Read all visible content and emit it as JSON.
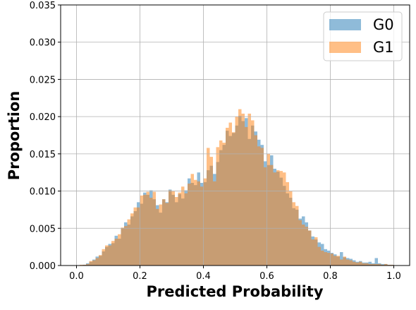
{
  "chart_data": {
    "type": "histogram",
    "xlabel": "Predicted Probability",
    "ylabel": "Proportion",
    "bins": [
      0,
      0.01,
      0.02,
      0.03,
      0.04,
      0.05,
      0.06,
      0.07,
      0.08,
      0.09,
      0.1,
      0.11,
      0.12,
      0.13,
      0.14,
      0.15,
      0.16,
      0.17,
      0.18,
      0.19,
      0.2,
      0.21,
      0.22,
      0.23,
      0.24,
      0.25,
      0.26,
      0.27,
      0.28,
      0.29,
      0.3,
      0.31,
      0.32,
      0.33,
      0.34,
      0.35,
      0.36,
      0.37,
      0.38,
      0.39,
      0.4,
      0.41,
      0.42,
      0.43,
      0.44,
      0.45,
      0.46,
      0.47,
      0.48,
      0.49,
      0.5,
      0.51,
      0.52,
      0.53,
      0.54,
      0.55,
      0.56,
      0.57,
      0.58,
      0.59,
      0.6,
      0.61,
      0.62,
      0.63,
      0.64,
      0.65,
      0.66,
      0.67,
      0.68,
      0.69,
      0.7,
      0.71,
      0.72,
      0.73,
      0.74,
      0.75,
      0.76,
      0.77,
      0.78,
      0.79,
      0.8,
      0.81,
      0.82,
      0.83,
      0.84,
      0.85,
      0.86,
      0.87,
      0.88,
      0.89,
      0.9,
      0.91,
      0.92,
      0.93,
      0.94,
      0.95,
      0.96,
      0.97,
      0.98,
      0.99,
      1
    ],
    "series": [
      {
        "name": "G0",
        "color": "#1f77b4",
        "opacity": 0.5,
        "values": [
          0,
          0,
          0.0001,
          0.0003,
          0.0005,
          0.0008,
          0.0012,
          0.0013,
          0.0019,
          0.0025,
          0.0029,
          0.003,
          0.004,
          0.0036,
          0.005,
          0.0058,
          0.0055,
          0.0066,
          0.0073,
          0.0085,
          0.0083,
          0.0098,
          0.0095,
          0.0101,
          0.0089,
          0.0081,
          0.0071,
          0.0089,
          0.0085,
          0.0102,
          0.0095,
          0.0085,
          0.0096,
          0.009,
          0.0101,
          0.0117,
          0.0111,
          0.0108,
          0.0125,
          0.0111,
          0.0112,
          0.0128,
          0.0134,
          0.0123,
          0.0139,
          0.0155,
          0.0162,
          0.0181,
          0.0174,
          0.0178,
          0.0188,
          0.0201,
          0.0194,
          0.0198,
          0.017,
          0.0188,
          0.018,
          0.0169,
          0.0162,
          0.014,
          0.0135,
          0.0148,
          0.013,
          0.0126,
          0.0118,
          0.0107,
          0.0097,
          0.0091,
          0.0077,
          0.0075,
          0.0063,
          0.0066,
          0.0058,
          0.0047,
          0.0039,
          0.0035,
          0.0031,
          0.0029,
          0.0022,
          0.002,
          0.0017,
          0.0015,
          0.0012,
          0.0018,
          0.0011,
          0.001,
          0.0009,
          0.0007,
          0.0005,
          0.0006,
          0.0004,
          0.0004,
          0.0005,
          0.0003,
          0.001,
          0.0003,
          0.0002,
          0.0002,
          0.0001,
          0.0001
        ]
      },
      {
        "name": "G1",
        "color": "#ff7f0e",
        "opacity": 0.5,
        "values": [
          0,
          0.0001,
          0.0001,
          0.0002,
          0.0006,
          0.0007,
          0.001,
          0.0014,
          0.0022,
          0.0027,
          0.0027,
          0.0033,
          0.0036,
          0.0042,
          0.0051,
          0.0053,
          0.0062,
          0.007,
          0.0078,
          0.0078,
          0.0094,
          0.0095,
          0.0099,
          0.0091,
          0.0099,
          0.0076,
          0.0082,
          0.0089,
          0.0084,
          0.0101,
          0.01,
          0.0092,
          0.0098,
          0.0106,
          0.0097,
          0.011,
          0.0123,
          0.0115,
          0.0113,
          0.0106,
          0.0117,
          0.0158,
          0.0146,
          0.0113,
          0.0159,
          0.0168,
          0.0165,
          0.0185,
          0.0192,
          0.0179,
          0.02,
          0.021,
          0.0204,
          0.0186,
          0.0204,
          0.0195,
          0.0175,
          0.016,
          0.0158,
          0.0132,
          0.015,
          0.0135,
          0.0125,
          0.0128,
          0.0127,
          0.0125,
          0.0112,
          0.01,
          0.0085,
          0.008,
          0.0061,
          0.0055,
          0.0052,
          0.0047,
          0.0035,
          0.0038,
          0.0025,
          0.002,
          0.0018,
          0.0017,
          0.0016,
          0.0013,
          0.0013,
          0.0008,
          0.0012,
          0.0008,
          0.0007,
          0.0005,
          0.0004,
          0.0005,
          0.0003,
          0.0003,
          0.0002,
          0.0002,
          0.0002,
          0.0002,
          0.0001,
          0.0002,
          0.0001,
          0.0001
        ]
      }
    ],
    "xlim": [
      -0.05,
      1.05
    ],
    "xticks": [
      {
        "value": 0,
        "label": "0.0"
      },
      0.2,
      0.4,
      0.6,
      0.8,
      {
        "value": 1,
        "label": "1.0"
      }
    ],
    "ylim": [
      0,
      0.035
    ],
    "yticks": [
      {
        "value": 0,
        "label": "0.000"
      },
      {
        "value": 0.005,
        "label": "0.005"
      },
      {
        "value": 0.01,
        "label": "0.010"
      },
      {
        "value": 0.015,
        "label": "0.015"
      },
      {
        "value": 0.02,
        "label": "0.020"
      },
      {
        "value": 0.025,
        "label": "0.025"
      },
      {
        "value": 0.03,
        "label": "0.030"
      },
      {
        "value": 0.035,
        "label": "0.035"
      }
    ],
    "grid": true,
    "legend": "upper right"
  }
}
